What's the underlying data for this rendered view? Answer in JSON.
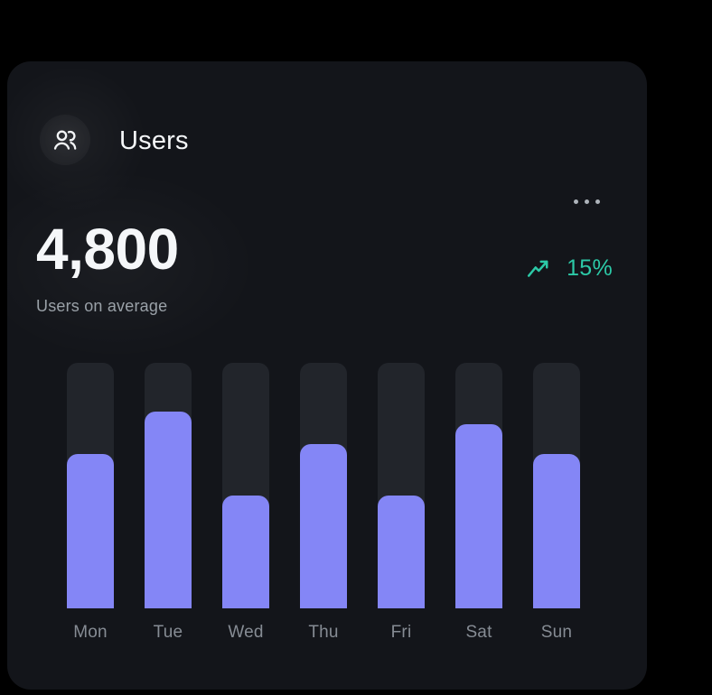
{
  "card": {
    "title": "Users",
    "stat_value": "4,800",
    "stat_label": "Users on average",
    "trend": {
      "value": "15%",
      "direction": "up"
    },
    "menu": {
      "icon": "ellipsis-icon"
    },
    "header_icon": "users-icon"
  },
  "chart_data": {
    "type": "bar",
    "categories": [
      "Mon",
      "Tue",
      "Wed",
      "Thu",
      "Fri",
      "Sat",
      "Sun"
    ],
    "values": [
      63,
      80,
      46,
      67,
      46,
      75,
      63
    ],
    "value_unit": "percent_of_track_max",
    "ylim": [
      0,
      100
    ],
    "title": "",
    "xlabel": "",
    "ylabel": "",
    "grid": false,
    "legend": false
  },
  "colors": {
    "page_bg": "#000000",
    "card_bg": "#13151a",
    "bar_track": "#22252b",
    "bar_fill": "#8486f6",
    "accent_teal": "#2cc9a7",
    "text_primary": "#f5f7f9",
    "text_secondary": "#9aa1a8",
    "text_muted": "#868c94",
    "text_dots": "#aeb4bb"
  }
}
